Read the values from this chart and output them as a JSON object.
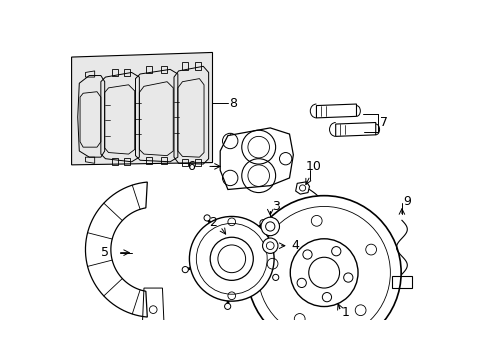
{
  "background_color": "#ffffff",
  "line_color": "#000000",
  "pad_bg": "#e8e8e8",
  "figsize": [
    4.89,
    3.6
  ],
  "dpi": 100
}
